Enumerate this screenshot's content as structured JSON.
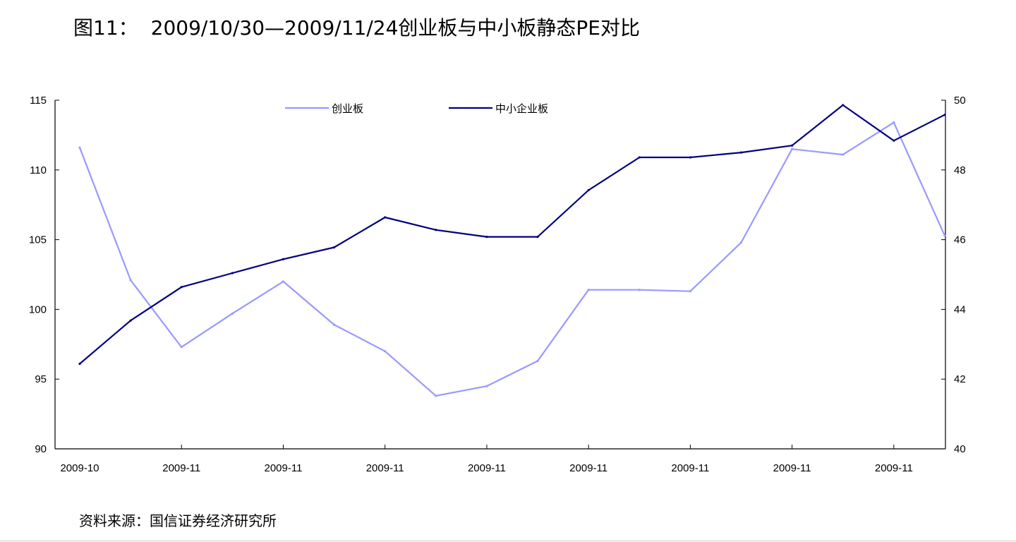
{
  "title": {
    "figure_label": "图11：",
    "text": "2009/10/30—2009/11/24创业板与中小板静态PE对比"
  },
  "source": "资料来源：国信证券经济研究所",
  "chart_data": {
    "type": "line",
    "title": "2009/10/30—2009/11/24创业板与中小板静态PE对比",
    "categories": [
      "2009-10",
      "",
      "2009-11",
      "",
      "2009-11",
      "",
      "2009-11",
      "",
      "2009-11",
      "",
      "2009-11",
      "",
      "2009-11",
      "",
      "2009-11",
      "",
      "2009-11",
      ""
    ],
    "x_tick_labels": [
      "2009-10",
      "2009-11",
      "2009-11",
      "2009-11",
      "2009-11",
      "2009-11",
      "2009-11",
      "2009-11",
      "2009-11"
    ],
    "y_left": {
      "lim": [
        90,
        115
      ],
      "ticks": [
        90,
        95,
        100,
        105,
        110,
        115
      ]
    },
    "y_right": {
      "lim": [
        40,
        50
      ],
      "ticks": [
        40,
        42,
        44,
        46,
        48,
        50
      ]
    },
    "legend_position": "top-center",
    "grid": false,
    "series": [
      {
        "name": "创业板",
        "axis": "left",
        "color": "#9999ff",
        "values": [
          111.6,
          102.1,
          97.3,
          99.7,
          102.0,
          98.9,
          97.0,
          93.8,
          94.5,
          96.3,
          101.4,
          101.4,
          101.3,
          104.8,
          111.5,
          111.1,
          113.4,
          105.3
        ]
      },
      {
        "name": "中小企业板",
        "axis": "right",
        "color": "#000080",
        "values": [
          42.44,
          43.68,
          44.64,
          45.04,
          45.44,
          45.78,
          46.64,
          46.28,
          46.08,
          46.08,
          47.42,
          48.36,
          48.36,
          48.5,
          48.7,
          49.86,
          48.84,
          49.58
        ]
      }
    ]
  }
}
